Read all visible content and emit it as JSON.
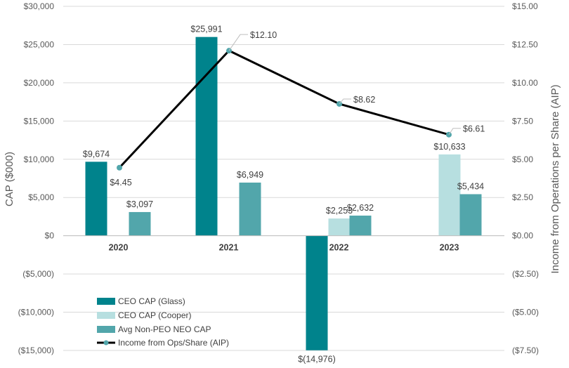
{
  "chart_data": {
    "type": "bar+line",
    "categories": [
      "2020",
      "2021",
      "2022",
      "2023"
    ],
    "series": [
      {
        "name": "CEO CAP (Glass)",
        "type": "bar",
        "axis": "left",
        "color": "#00838c",
        "values": [
          9674,
          25991,
          -14976,
          null
        ],
        "labels": [
          "$9,674",
          "$25,991",
          "$(14,976)",
          ""
        ]
      },
      {
        "name": "CEO CAP (Cooper)",
        "type": "bar",
        "axis": "left",
        "color": "#b7dfe0",
        "values": [
          null,
          null,
          2253,
          10633
        ],
        "labels": [
          "",
          "",
          "$2,253",
          "$10,633"
        ]
      },
      {
        "name": "Avg Non-PEO NEO CAP",
        "type": "bar",
        "axis": "left",
        "color": "#52a6ab",
        "values": [
          3097,
          6949,
          2632,
          5434
        ],
        "labels": [
          "$3,097",
          "$6,949",
          "$2,632",
          "$5,434"
        ]
      },
      {
        "name": "Income from Ops/Share (AIP)",
        "type": "line",
        "axis": "right",
        "color": "#000000",
        "marker_color": "#52a6ab",
        "values": [
          4.45,
          12.1,
          8.62,
          6.61
        ],
        "labels": [
          "$4.45",
          "$12.10",
          "$8.62",
          "$6.61"
        ]
      }
    ],
    "y_left": {
      "label": "CAP ($000)",
      "range": [
        -15000,
        30000
      ],
      "ticks": [
        30000,
        25000,
        20000,
        15000,
        10000,
        5000,
        0,
        -5000,
        -10000,
        -15000
      ],
      "tick_labels": [
        "$30,000",
        "$25,000",
        "$20,000",
        "$15,000",
        "$10,000",
        "$5,000",
        "$0",
        "($5,000)",
        "($10,000)",
        "($15,000)"
      ]
    },
    "y_right": {
      "label": "Income from Operations per Share (AIP)",
      "range": [
        -7.5,
        15
      ],
      "ticks": [
        15,
        12.5,
        10,
        7.5,
        5,
        2.5,
        0,
        -2.5,
        -5,
        -7.5
      ],
      "tick_labels": [
        "$15.00",
        "$12.50",
        "$10.00",
        "$7.50",
        "$5.00",
        "$2.50",
        "$0.00",
        "($2.50)",
        "($5.00)",
        "($7.50)"
      ]
    },
    "gridlines": true,
    "legend_position": "bottom-left"
  }
}
